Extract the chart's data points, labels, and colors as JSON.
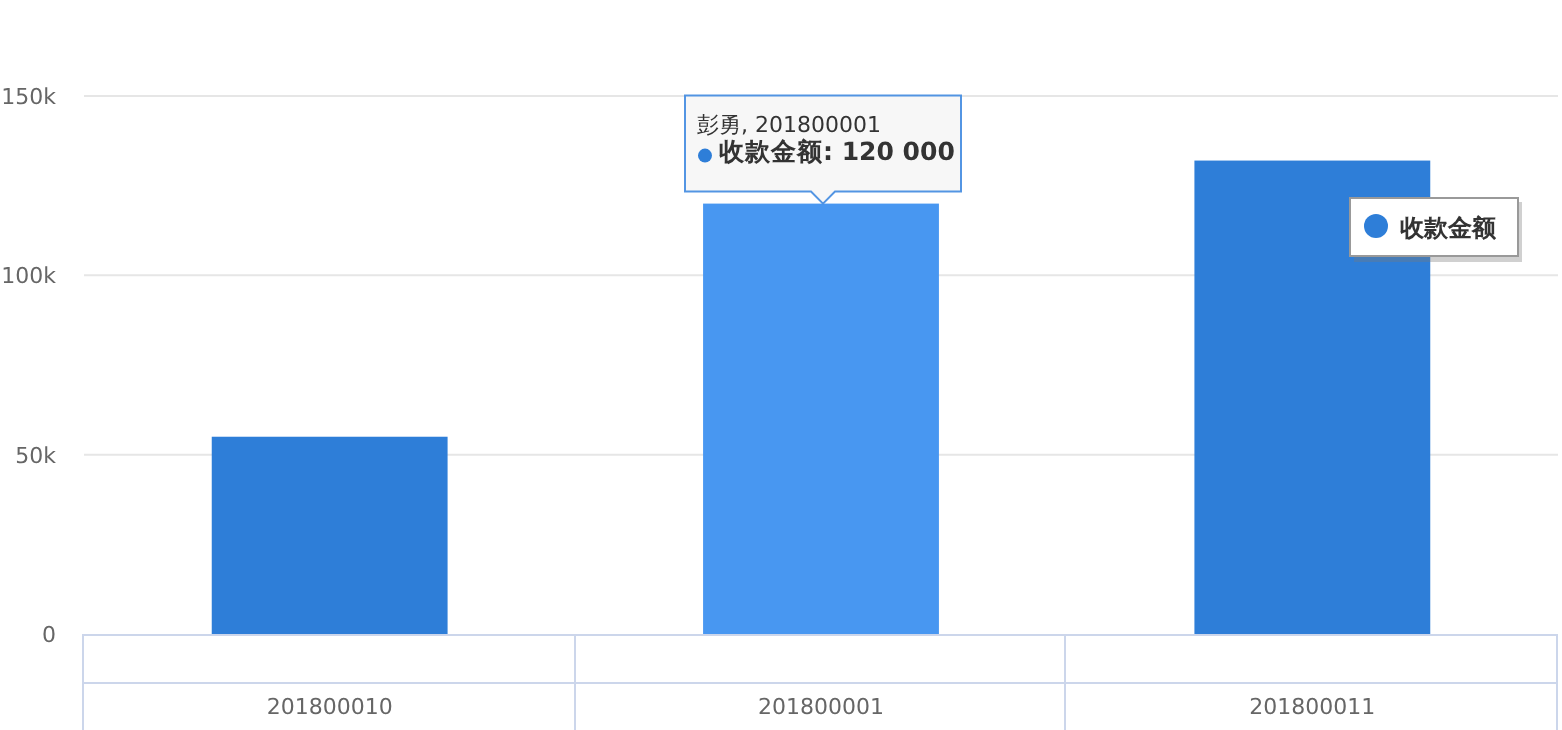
{
  "chart_data": {
    "type": "bar",
    "categories": [
      "201800010",
      "201800001",
      "201800011"
    ],
    "series": [
      {
        "name": "收款金额",
        "color": "#2e7ed8",
        "colors": [
          "#2e7ed8",
          "#4897f1",
          "#2e7ed8"
        ],
        "values": [
          55000,
          120000,
          132000
        ]
      }
    ],
    "ylim": [
      0,
      150000
    ],
    "yticks": [
      {
        "value": 0,
        "label": "0"
      },
      {
        "value": 50000,
        "label": "50k"
      },
      {
        "value": 100000,
        "label": "100k"
      },
      {
        "value": 150000,
        "label": "150k"
      }
    ],
    "grid": "y",
    "legend": "top right",
    "annotations": [
      {
        "text": "彭勇, 201800001",
        "x": "201800001",
        "y": 120000
      },
      {
        "text": "收款金额: 120 000",
        "x": "201800001",
        "y": 120000
      }
    ]
  }
}
